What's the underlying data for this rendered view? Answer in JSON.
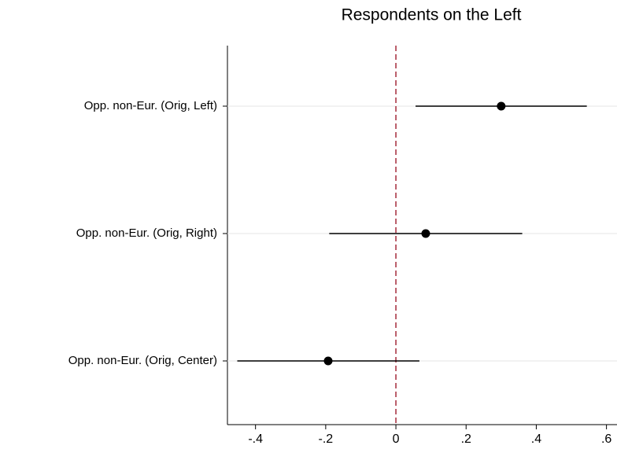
{
  "chart_data": {
    "type": "coefplot",
    "title": "Respondents on the Left",
    "categories": [
      "Opp. non-Eur. (Orig, Left)",
      "Opp. non-Eur. (Orig, Right)",
      "Opp. non-Eur. (Orig, Center)"
    ],
    "values": [
      0.3,
      0.085,
      -0.193
    ],
    "lower": [
      0.056,
      -0.19,
      -0.452
    ],
    "upper": [
      0.544,
      0.36,
      0.067
    ],
    "color": "#000000",
    "xlim": [
      -0.48,
      0.63
    ],
    "xticks": [
      {
        "value": -0.4,
        "label": "-.4"
      },
      {
        "value": -0.2,
        "label": "-.2"
      },
      0,
      {
        "value": 0.2,
        "label": ".2"
      },
      {
        "value": 0.4,
        "label": ".4"
      },
      {
        "value": 0.6,
        "label": ".6"
      }
    ],
    "xline": 0,
    "xline_color": "#a52a3a",
    "grid": true
  }
}
